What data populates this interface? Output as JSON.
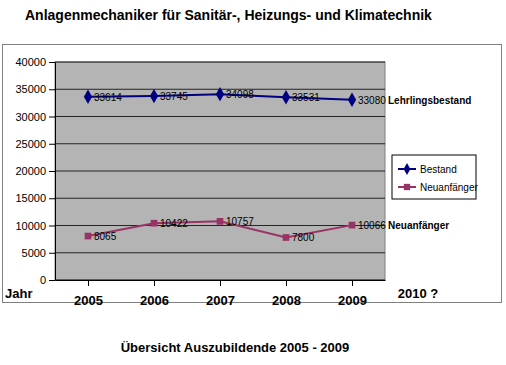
{
  "chart_data": {
    "type": "line",
    "title": "Anlagenmechaniker für Sanitär-, Heizungs- und Klimatechnik",
    "subtitle": "Übersicht Auszubildende 2005 - 2009",
    "x_label": "Jahr",
    "categories": [
      "2005",
      "2006",
      "2007",
      "2008",
      "2009"
    ],
    "series": [
      {
        "name": "Bestand",
        "color": "#000080",
        "marker": "diamond",
        "values": [
          33614,
          33745,
          34098,
          33531,
          33080
        ]
      },
      {
        "name": "Neuanfänger",
        "color": "#993366",
        "marker": "square",
        "values": [
          8065,
          10422,
          10757,
          7800,
          10066
        ]
      }
    ],
    "annotations": [
      "Lehrlingsbestand",
      "Neuanfänger",
      "2010 ?"
    ],
    "ylim": [
      0,
      40000
    ],
    "yticks": [
      0,
      5000,
      10000,
      15000,
      20000,
      25000,
      30000,
      35000,
      40000
    ],
    "grid": true,
    "legend": "right",
    "data_labels": true
  }
}
